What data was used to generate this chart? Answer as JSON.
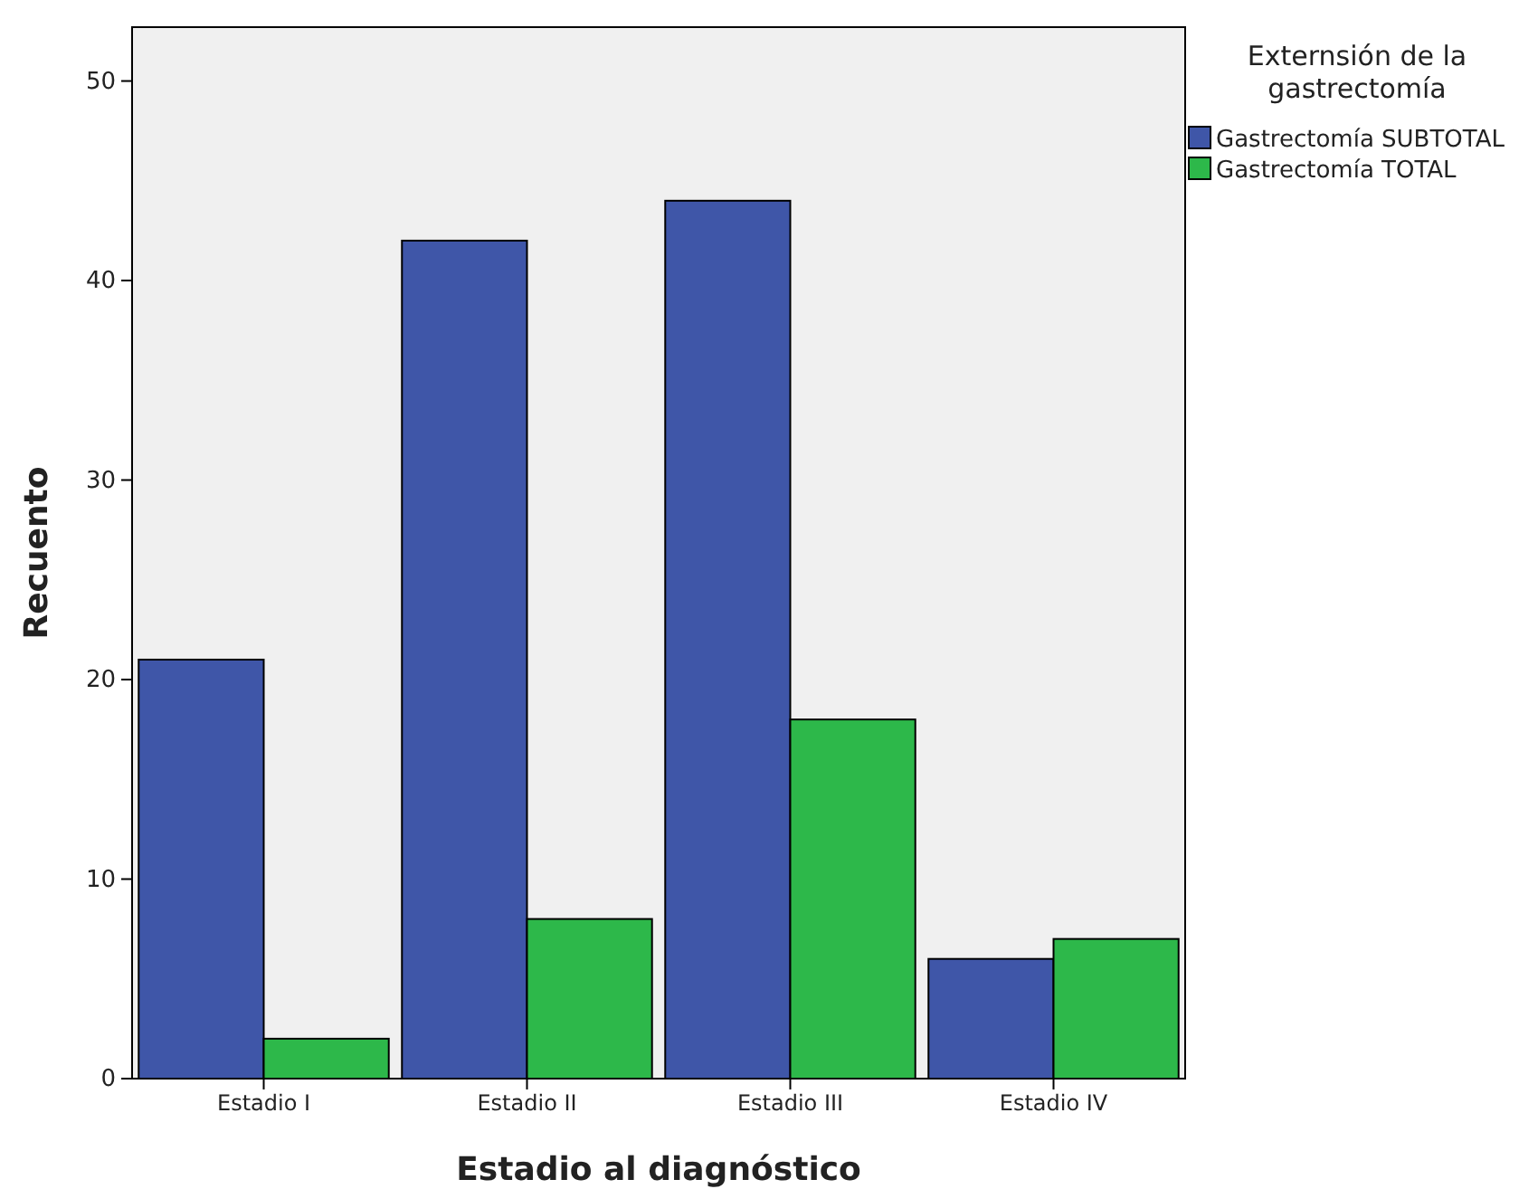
{
  "chart_data": {
    "type": "bar",
    "xlabel": "Estadio al diagnóstico",
    "ylabel": "Recuento",
    "legend_title": "Externsión de la gastrectomía",
    "categories": [
      "Estadio I",
      "Estadio II",
      "Estadio III",
      "Estadio IV"
    ],
    "series": [
      {
        "name": "Gastrectomía SUBTOTAL",
        "color": "#3f56a8",
        "values": [
          21,
          42,
          44,
          6
        ]
      },
      {
        "name": "Gastrectomía TOTAL",
        "color": "#2db84a",
        "values": [
          2,
          8,
          18,
          7
        ]
      }
    ],
    "ylim": [
      0,
      52.7
    ],
    "yticks": [
      0,
      10,
      20,
      30,
      40,
      50
    ],
    "legend": "right"
  }
}
